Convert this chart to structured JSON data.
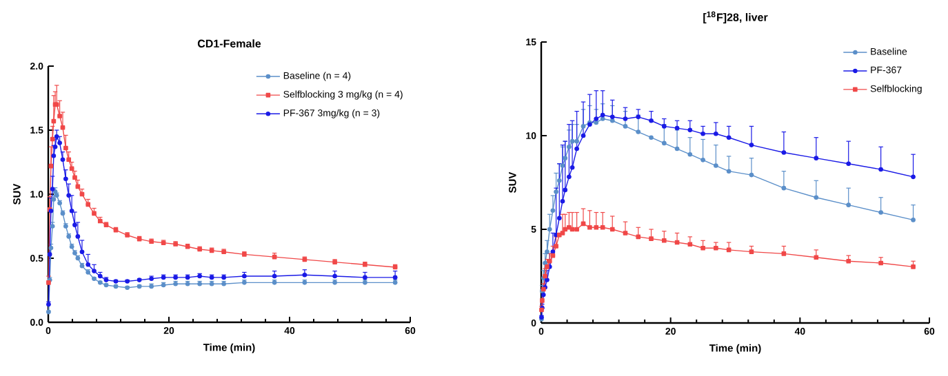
{
  "chart_data": [
    {
      "type": "line",
      "title": "CD1-Female",
      "xlabel": "Time (min)",
      "ylabel": "SUV",
      "legend": "top right",
      "xlim": [
        0,
        60
      ],
      "xticks": [
        0,
        20,
        40,
        60
      ],
      "ylim": [
        0,
        2
      ],
      "yticks": [
        {
          "value": 0,
          "label": "0.0"
        },
        {
          "value": 0.5,
          "label": "0.5"
        },
        {
          "value": 1,
          "label": "1.0"
        },
        {
          "value": 1.5,
          "label": "1.5"
        },
        {
          "value": 2,
          "label": "2.0"
        }
      ],
      "x": [
        0.05,
        0.25,
        0.45,
        0.7,
        0.9,
        1.15,
        1.4,
        1.9,
        2.4,
        2.9,
        3.4,
        3.9,
        4.4,
        4.9,
        5.6,
        6.6,
        7.6,
        8.6,
        9.6,
        11.2,
        13.1,
        15.1,
        17.1,
        19.1,
        21.1,
        23.1,
        25.1,
        27.1,
        29.1,
        32.5,
        37.5,
        42.5,
        47.5,
        52.5,
        57.5
      ],
      "series": [
        {
          "name": "Baseline (n = 4)",
          "color": "#5b8fc9",
          "marker": "circle",
          "values": [
            0.08,
            0.33,
            0.58,
            0.75,
            0.96,
            1.02,
            0.99,
            0.93,
            0.85,
            0.75,
            0.67,
            0.59,
            0.54,
            0.5,
            0.44,
            0.39,
            0.34,
            0.31,
            0.29,
            0.28,
            0.27,
            0.28,
            0.28,
            0.29,
            0.3,
            0.3,
            0.3,
            0.3,
            0.3,
            0.31,
            0.31,
            0.31,
            0.31,
            0.31,
            0.31
          ],
          "errors": [
            [
              0.08,
              0.09
            ],
            [
              0.33,
              0.35
            ],
            [
              0.58,
              0.61
            ],
            [
              0.75,
              0.78
            ],
            [
              0.96,
              0.99
            ],
            [
              1.02,
              1.05
            ],
            [
              0.99,
              1.01
            ],
            [
              0.93,
              0.95
            ],
            [
              0.85,
              0.87
            ],
            [
              0.75,
              0.77
            ],
            [
              0.67,
              0.69
            ],
            [
              0.59,
              0.61
            ],
            [
              0.54,
              0.56
            ],
            [
              0.5,
              0.52
            ],
            [
              0.44,
              0.46
            ],
            [
              0.39,
              0.41
            ],
            [
              0.34,
              0.35
            ],
            [
              0.31,
              0.32
            ],
            [
              0.29,
              0.3
            ],
            [
              0.28,
              0.29
            ],
            [
              0.27,
              0.28
            ],
            [
              0.28,
              0.29
            ],
            [
              0.28,
              0.3
            ],
            [
              0.29,
              0.31
            ],
            [
              0.3,
              0.32
            ],
            [
              0.3,
              0.32
            ],
            [
              0.3,
              0.32
            ],
            [
              0.3,
              0.32
            ],
            [
              0.3,
              0.32
            ],
            [
              0.31,
              0.33
            ],
            [
              0.31,
              0.33
            ],
            [
              0.31,
              0.33
            ],
            [
              0.31,
              0.33
            ],
            [
              0.31,
              0.33
            ],
            [
              0.31,
              0.33
            ]
          ]
        },
        {
          "name": "Selfblocking 3 mg/kg  (n = 4)",
          "color": "#f04848",
          "marker": "square",
          "values": [
            0.31,
            0.88,
            1.22,
            1.43,
            1.57,
            1.7,
            1.7,
            1.61,
            1.52,
            1.36,
            1.27,
            1.2,
            1.13,
            1.06,
            1.0,
            0.92,
            0.85,
            0.79,
            0.76,
            0.72,
            0.68,
            0.65,
            0.63,
            0.62,
            0.61,
            0.59,
            0.57,
            0.56,
            0.55,
            0.53,
            0.51,
            0.49,
            0.47,
            0.45,
            0.43
          ],
          "errors": [
            [
              0.31,
              0.36
            ],
            [
              0.88,
              0.98
            ],
            [
              1.22,
              1.37
            ],
            [
              1.43,
              1.53
            ],
            [
              1.57,
              1.77
            ],
            [
              1.7,
              1.8
            ],
            [
              1.7,
              1.85
            ],
            [
              1.61,
              1.73
            ],
            [
              1.52,
              1.64
            ],
            [
              1.36,
              1.46
            ],
            [
              1.27,
              1.33
            ],
            [
              1.2,
              1.25
            ],
            [
              1.13,
              1.18
            ],
            [
              1.06,
              1.11
            ],
            [
              1.0,
              1.04
            ],
            [
              0.92,
              0.96
            ],
            [
              0.85,
              0.89
            ],
            [
              0.79,
              0.82
            ],
            [
              0.76,
              0.78
            ],
            [
              0.72,
              0.74
            ],
            [
              0.68,
              0.7
            ],
            [
              0.65,
              0.67
            ],
            [
              0.63,
              0.65
            ],
            [
              0.62,
              0.64
            ],
            [
              0.61,
              0.63
            ],
            [
              0.59,
              0.61
            ],
            [
              0.57,
              0.59
            ],
            [
              0.56,
              0.58
            ],
            [
              0.55,
              0.57
            ],
            [
              0.53,
              0.55
            ],
            [
              0.51,
              0.54
            ],
            [
              0.49,
              0.51
            ],
            [
              0.47,
              0.49
            ],
            [
              0.45,
              0.47
            ],
            [
              0.43,
              0.45
            ]
          ]
        },
        {
          "name": "PF-367 3mg/kg  (n = 3)",
          "color": "#1a1ae6",
          "marker": "circle",
          "values": [
            0.14,
            0.53,
            0.87,
            1.04,
            1.3,
            1.37,
            1.45,
            1.4,
            1.27,
            1.12,
            0.99,
            0.87,
            0.76,
            0.67,
            0.55,
            0.45,
            0.4,
            0.36,
            0.33,
            0.32,
            0.32,
            0.33,
            0.34,
            0.35,
            0.35,
            0.35,
            0.36,
            0.35,
            0.35,
            0.36,
            0.36,
            0.37,
            0.36,
            0.35,
            0.35
          ],
          "errors": [
            [
              0.14,
              0.16
            ],
            null,
            [
              0.87,
              0.97
            ],
            [
              1.04,
              1.14
            ],
            [
              1.3,
              1.38
            ],
            [
              1.37,
              1.43
            ],
            [
              1.45,
              1.5
            ],
            [
              1.4,
              1.45
            ],
            [
              1.27,
              1.33
            ],
            [
              1.12,
              1.19
            ],
            [
              0.99,
              1.08
            ],
            [
              0.87,
              0.99
            ],
            [
              0.76,
              0.86
            ],
            [
              0.67,
              0.78
            ],
            [
              0.55,
              0.64
            ],
            [
              0.45,
              0.53
            ],
            [
              0.4,
              0.45
            ],
            [
              0.36,
              0.39
            ],
            [
              0.33,
              0.35
            ],
            [
              0.32,
              0.33
            ],
            [
              0.32,
              0.33
            ],
            [
              0.33,
              0.34
            ],
            [
              0.34,
              0.36
            ],
            [
              0.35,
              0.37
            ],
            [
              0.35,
              0.37
            ],
            [
              0.35,
              0.37
            ],
            [
              0.36,
              0.38
            ],
            [
              0.35,
              0.37
            ],
            [
              0.35,
              0.37
            ],
            [
              0.36,
              0.39
            ],
            [
              0.36,
              0.4
            ],
            [
              0.37,
              0.41
            ],
            [
              0.36,
              0.4
            ],
            [
              0.35,
              0.39
            ],
            [
              0.35,
              0.4
            ]
          ]
        }
      ]
    },
    {
      "type": "line",
      "title": "[$^{18}$F]28, liver",
      "xlabel": "Time (min)",
      "ylabel": "SUV",
      "legend": "top right",
      "xlim": [
        0,
        60
      ],
      "xticks": [
        0,
        20,
        40,
        60
      ],
      "ylim": [
        0,
        15
      ],
      "yticks": [
        0,
        5,
        10,
        15
      ],
      "x": [
        0.05,
        0.15,
        0.35,
        0.6,
        0.9,
        1.3,
        1.8,
        2.3,
        2.8,
        3.3,
        3.7,
        4.3,
        4.8,
        5.5,
        6.5,
        7.5,
        8.5,
        9.5,
        11,
        13,
        15,
        17,
        19,
        21,
        23,
        25,
        27,
        29,
        32.5,
        37.5,
        42.5,
        47.5,
        52.5,
        57.5
      ],
      "series": [
        {
          "name": "Baseline",
          "color": "#5b8fc9",
          "marker": "circle",
          "values": [
            0.2,
            1.7,
            2.4,
            3.2,
            3.8,
            5.0,
            6.0,
            7.0,
            7.6,
            8.4,
            8.8,
            9.4,
            9.7,
            9.7,
            10.5,
            10.7,
            10.7,
            10.9,
            10.8,
            10.5,
            10.2,
            9.9,
            9.6,
            9.3,
            9.0,
            8.7,
            8.4,
            8.1,
            7.9,
            7.2,
            6.7,
            6.3,
            5.9,
            5.5
          ],
          "errors": [
            null,
            [
              1.7,
              2.0
            ],
            [
              2.4,
              2.8
            ],
            [
              3.2,
              3.7
            ],
            [
              3.8,
              4.4
            ],
            [
              5.0,
              5.8
            ],
            [
              6.0,
              6.8
            ],
            [
              7.0,
              8.0
            ],
            [
              7.6,
              8.5
            ],
            [
              8.4,
              9.4
            ],
            [
              8.8,
              9.7
            ],
            [
              9.4,
              10.3
            ],
            [
              9.7,
              10.6
            ],
            [
              9.7,
              10.6
            ],
            [
              10.5,
              11.4
            ],
            [
              10.7,
              11.6
            ],
            [
              10.7,
              11.4
            ],
            [
              10.9,
              11.7
            ],
            [
              10.8,
              11.6
            ],
            [
              10.5,
              11.3
            ],
            [
              10.2,
              11.1
            ],
            null,
            [
              9.6,
              10.6
            ],
            [
              9.3,
              10.3
            ],
            [
              9.0,
              9.9
            ],
            [
              8.7,
              9.8
            ],
            [
              8.4,
              9.5
            ],
            [
              8.1,
              8.9
            ],
            [
              7.9,
              8.8
            ],
            [
              7.2,
              8.1
            ],
            [
              6.7,
              7.6
            ],
            [
              6.3,
              7.2
            ],
            [
              5.9,
              6.7
            ],
            [
              5.5,
              6.3
            ]
          ]
        },
        {
          "name": "PF-367",
          "color": "#1a1ae6",
          "marker": "circle",
          "values": [
            0.3,
            0.8,
            1.5,
            1.9,
            2.3,
            3.0,
            3.8,
            4.7,
            5.6,
            6.5,
            7.1,
            7.8,
            8.3,
            9.3,
            10.0,
            10.6,
            10.9,
            11.1,
            11.0,
            10.9,
            11.0,
            10.8,
            10.5,
            10.4,
            10.3,
            10.1,
            10.1,
            9.9,
            9.5,
            9.1,
            8.8,
            8.5,
            8.2,
            7.8
          ],
          "errors": [
            [
              0.3,
              0.4
            ],
            [
              0.8,
              1.0
            ],
            null,
            [
              1.9,
              2.3
            ],
            [
              2.3,
              2.8
            ],
            [
              3.0,
              3.7
            ],
            [
              3.8,
              4.8
            ],
            [
              4.7,
              7.2
            ],
            [
              5.6,
              8.5
            ],
            [
              6.5,
              9.5
            ],
            [
              7.1,
              9.7
            ],
            [
              7.8,
              10.6
            ],
            [
              8.3,
              10.8
            ],
            [
              9.3,
              11.3
            ],
            [
              10.0,
              11.8
            ],
            [
              10.6,
              12.2
            ],
            [
              10.9,
              12.4
            ],
            [
              11.1,
              12.4
            ],
            [
              11.0,
              11.9
            ],
            [
              10.9,
              11.5
            ],
            [
              11.0,
              11.4
            ],
            [
              10.8,
              11.3
            ],
            [
              10.5,
              10.9
            ],
            [
              10.4,
              10.8
            ],
            [
              10.3,
              10.8
            ],
            [
              10.1,
              10.5
            ],
            [
              10.1,
              10.7
            ],
            [
              9.9,
              10.5
            ],
            [
              9.5,
              10.5
            ],
            [
              9.1,
              10.2
            ],
            [
              8.8,
              9.9
            ],
            [
              8.5,
              9.7
            ],
            [
              8.2,
              9.4
            ],
            [
              7.8,
              9.0
            ]
          ]
        },
        {
          "name": "Selfblocking",
          "color": "#f04848",
          "marker": "square",
          "values": [
            0.7,
            1.2,
            1.8,
            2.5,
            3.0,
            3.3,
            3.6,
            4.1,
            4.7,
            4.8,
            5.0,
            5.1,
            5.0,
            5.0,
            5.3,
            5.1,
            5.1,
            5.1,
            5.0,
            4.8,
            4.6,
            4.5,
            4.4,
            4.3,
            4.2,
            4.0,
            4.0,
            3.9,
            3.8,
            3.7,
            3.5,
            3.3,
            3.2,
            3.0
          ],
          "errors": [
            [
              0.7,
              0.9
            ],
            null,
            [
              1.8,
              2.1
            ],
            [
              2.5,
              2.9
            ],
            [
              3.0,
              3.4
            ],
            [
              3.3,
              3.7
            ],
            [
              3.6,
              4.1
            ],
            [
              4.1,
              4.6
            ],
            null,
            [
              4.8,
              5.8
            ],
            [
              5.0,
              5.8
            ],
            [
              5.1,
              5.9
            ],
            [
              5.0,
              5.9
            ],
            [
              5.0,
              5.9
            ],
            [
              5.3,
              6.1
            ],
            [
              5.1,
              6.0
            ],
            [
              5.1,
              5.9
            ],
            [
              5.1,
              5.9
            ],
            [
              5.0,
              5.7
            ],
            [
              4.8,
              5.4
            ],
            [
              4.6,
              5.1
            ],
            [
              4.5,
              5.0
            ],
            [
              4.4,
              4.9
            ],
            [
              4.3,
              4.8
            ],
            [
              4.2,
              4.6
            ],
            [
              4.0,
              4.4
            ],
            [
              4.0,
              4.3
            ],
            [
              3.9,
              4.3
            ],
            [
              3.8,
              4.1
            ],
            [
              3.7,
              4.1
            ],
            [
              3.5,
              3.9
            ],
            [
              3.3,
              3.6
            ],
            [
              3.2,
              3.5
            ],
            [
              3.0,
              3.3
            ]
          ]
        }
      ]
    }
  ]
}
